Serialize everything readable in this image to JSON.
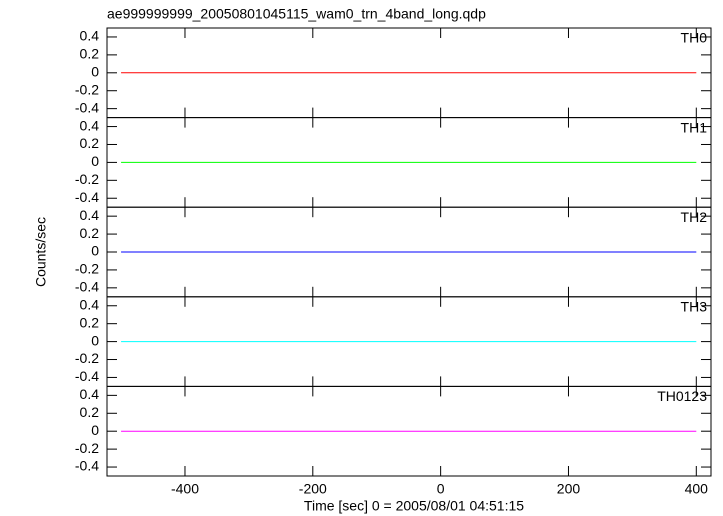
{
  "chart_data": [
    {
      "type": "line",
      "title": "ae999999999_20050801045115_wam0_trn_4band_long.qdp",
      "x": [
        -500,
        400
      ],
      "series": [
        {
          "name": "TH0",
          "color": "#ff0000",
          "values": [
            0,
            0
          ]
        }
      ],
      "xlim": [
        -522,
        423
      ],
      "ylim": [
        -0.5,
        0.5
      ],
      "xticks": [
        -400,
        -200,
        0,
        200,
        400
      ],
      "yticks": [
        0.4,
        0.2,
        0,
        -0.2,
        -0.4
      ]
    },
    {
      "type": "line",
      "x": [
        -500,
        400
      ],
      "series": [
        {
          "name": "TH1",
          "color": "#00ff00",
          "values": [
            0,
            0
          ]
        }
      ],
      "xlim": [
        -522,
        423
      ],
      "ylim": [
        -0.5,
        0.5
      ],
      "xticks": [
        -400,
        -200,
        0,
        200,
        400
      ],
      "yticks": [
        0.4,
        0.2,
        0,
        -0.2,
        -0.4
      ]
    },
    {
      "type": "line",
      "y_label": "Counts/sec",
      "x": [
        -500,
        400
      ],
      "series": [
        {
          "name": "TH2",
          "color": "#0000ff",
          "values": [
            0,
            0
          ]
        }
      ],
      "xlim": [
        -522,
        423
      ],
      "ylim": [
        -0.5,
        0.5
      ],
      "xticks": [
        -400,
        -200,
        0,
        200,
        400
      ],
      "yticks": [
        0.4,
        0.2,
        0,
        -0.2,
        -0.4
      ]
    },
    {
      "type": "line",
      "x": [
        -500,
        400
      ],
      "series": [
        {
          "name": "TH3",
          "color": "#00ffff",
          "values": [
            0,
            0
          ]
        }
      ],
      "xlim": [
        -522,
        423
      ],
      "ylim": [
        -0.5,
        0.5
      ],
      "xticks": [
        -400,
        -200,
        0,
        200,
        400
      ],
      "yticks": [
        0.4,
        0.2,
        0,
        -0.2,
        -0.4
      ]
    },
    {
      "type": "line",
      "x_label": "Time [sec] 0 = 2005/08/01 04:51:15",
      "x": [
        -500,
        400
      ],
      "series": [
        {
          "name": "TH0123",
          "color": "#ff00ff",
          "values": [
            0,
            0
          ]
        }
      ],
      "xlim": [
        -522,
        423
      ],
      "ylim": [
        -0.5,
        0.5
      ],
      "xticks": [
        -400,
        -200,
        0,
        200,
        400
      ],
      "yticks": [
        0.4,
        0.2,
        0,
        -0.2,
        -0.4
      ]
    }
  ]
}
